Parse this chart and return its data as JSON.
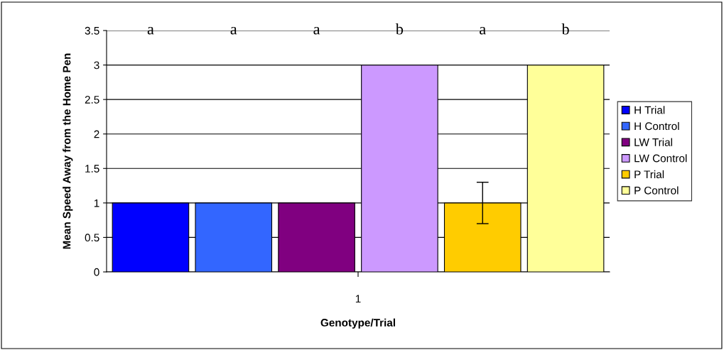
{
  "chart_data": {
    "type": "bar",
    "xlabel": "Genotype/Trial",
    "ylabel": "Mean Speed Away from the Home Pen",
    "categories": [
      "1"
    ],
    "series": [
      {
        "name": "H Trial",
        "color": "#0000ff",
        "values": [
          1
        ]
      },
      {
        "name": "H Control",
        "color": "#3366ff",
        "values": [
          1
        ]
      },
      {
        "name": "LW Trial",
        "color": "#800080",
        "values": [
          1
        ]
      },
      {
        "name": "LW Control",
        "color": "#cc99ff",
        "values": [
          3
        ]
      },
      {
        "name": "P Trial",
        "color": "#ffcc00",
        "values": [
          1
        ],
        "errors": [
          0.3
        ]
      },
      {
        "name": "P Control",
        "color": "#ffff99",
        "values": [
          3
        ]
      }
    ],
    "annotations": [
      "a",
      "a",
      "a",
      "b",
      "a",
      "b"
    ],
    "ylim": [
      0,
      3.5
    ],
    "yticks": [
      0,
      0.5,
      1,
      1.5,
      2,
      2.5,
      3,
      3.5
    ],
    "grid": "y",
    "legend": "right"
  }
}
